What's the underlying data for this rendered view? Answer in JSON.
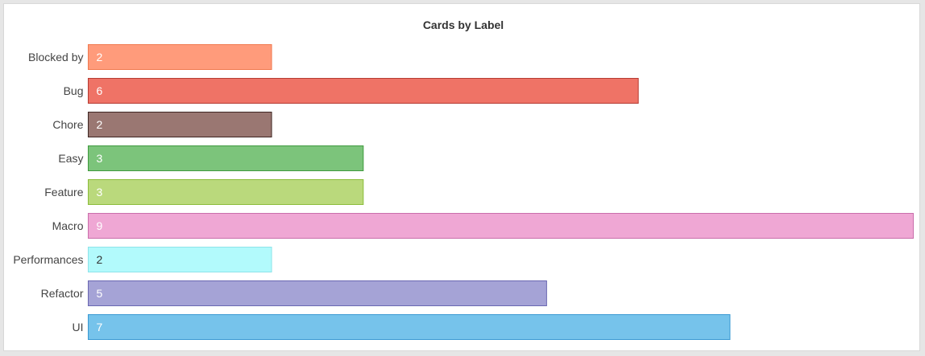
{
  "chart_data": {
    "type": "bar",
    "orientation": "horizontal",
    "title": "Cards by Label",
    "xlabel": "",
    "ylabel": "",
    "grid": false,
    "legend": "none",
    "xlim": [
      0,
      9
    ],
    "categories": [
      "Blocked by",
      "Bug",
      "Chore",
      "Easy",
      "Feature",
      "Macro",
      "Performances",
      "Refactor",
      "UI"
    ],
    "values": [
      2,
      6,
      2,
      3,
      3,
      9,
      2,
      5,
      7
    ],
    "colors": [
      "#ff9b7b",
      "#ef7366",
      "#9a7772",
      "#7cc47b",
      "#bad97c",
      "#efa7d4",
      "#b2fafc",
      "#a5a3d6",
      "#76c3eb"
    ],
    "border_colors": [
      "#f07a50",
      "#b53b32",
      "#3f2723",
      "#3f9a3e",
      "#8bbd3b",
      "#c96fab",
      "#8ee3e9",
      "#6a67b2",
      "#3b9ad3"
    ],
    "label_colors": [
      "#ffffff",
      "#ffffff",
      "#ffffff",
      "#ffffff",
      "#ffffff",
      "#ffffff",
      "#333333",
      "#ffffff",
      "#ffffff"
    ]
  }
}
